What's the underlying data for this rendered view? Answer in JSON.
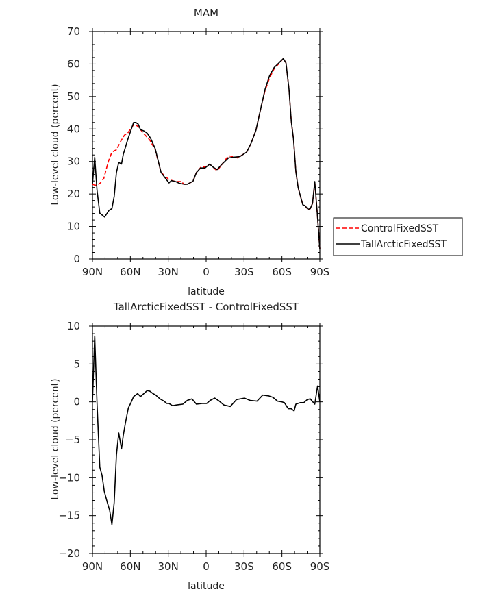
{
  "chart_data": [
    {
      "type": "line",
      "title": "MAM",
      "xlabel": "latitude",
      "ylabel": "Low-level cloud (percent)",
      "xlim": [
        90,
        -90
      ],
      "ylim": [
        0,
        70
      ],
      "xticks": [
        90,
        60,
        30,
        0,
        -30,
        -60,
        -90
      ],
      "xtick_labels": [
        "90N",
        "60N",
        "30N",
        "0",
        "30S",
        "60S",
        "90S"
      ],
      "yticks": [
        0,
        10,
        20,
        30,
        40,
        50,
        60,
        70
      ],
      "ytick_labels": [
        "0",
        "10",
        "20",
        "30",
        "40",
        "50",
        "60",
        "70"
      ],
      "grid": false,
      "legend": "right",
      "series": [
        {
          "name": "ControlFixedSST",
          "color": "#ff0000",
          "dash": "dashed",
          "x": [
            90,
            88.2,
            86.4,
            83.7,
            81,
            77.4,
            74.6,
            71,
            67.4,
            64.7,
            62,
            57.4,
            55.6,
            52.9,
            49.3,
            44.8,
            40.3,
            35.7,
            29.4,
            27.6,
            24,
            19.5,
            17.6,
            14.9,
            10.4,
            7.7,
            4,
            0.4,
            -2.8,
            -8.6,
            -17.7,
            -24.9,
            -32.1,
            -35.7,
            -39.4,
            -43,
            -46.6,
            -50.2,
            -53.8,
            -57.5,
            -61.1,
            -63.2,
            -65.6,
            -67.4,
            -69.2,
            -71,
            -72.8,
            -76.5,
            -78.3,
            -80.6,
            -82.4,
            -84.2,
            -86,
            -87.8,
            -90
          ],
          "y": [
            23,
            22.7,
            22.7,
            23.4,
            24.8,
            30,
            32.9,
            33.6,
            36.4,
            38.1,
            38.8,
            41.3,
            41.3,
            40.3,
            38.5,
            36.7,
            33.6,
            26.6,
            24.4,
            24.2,
            23.8,
            23.8,
            23,
            23,
            23.9,
            26.6,
            28.3,
            28.3,
            29.2,
            27.1,
            31.8,
            31.1,
            32.9,
            35.7,
            39.6,
            45.9,
            51.8,
            55.7,
            58.5,
            60.1,
            61.7,
            60.3,
            52.2,
            42.4,
            36.8,
            26.9,
            22,
            16.7,
            16.4,
            15.1,
            15.5,
            17.1,
            23.6,
            15,
            3
          ]
        },
        {
          "name": "TallArcticFixedSST",
          "color": "#000000",
          "dash": "solid",
          "x": [
            90,
            88.2,
            86.4,
            84.2,
            80.4,
            76.8,
            74.6,
            72.8,
            71,
            69.2,
            67,
            65.6,
            62,
            57.4,
            55.6,
            53.8,
            52,
            49.3,
            46.6,
            43.9,
            40.3,
            35.7,
            29.4,
            27.6,
            24,
            21.3,
            17.6,
            14.9,
            10.4,
            7.7,
            4.4,
            0.8,
            -2.8,
            -5.4,
            -8.6,
            -12.6,
            -17.7,
            -21.3,
            -26.7,
            -32.1,
            -35.7,
            -39.4,
            -43,
            -46.6,
            -50.2,
            -53.8,
            -57.5,
            -61.1,
            -63.2,
            -65.6,
            -67.4,
            -69.2,
            -71,
            -72.8,
            -76.5,
            -78.3,
            -80.6,
            -82.4,
            -84.2,
            -86,
            -87.8,
            -90
          ],
          "y": [
            23,
            31.3,
            21.3,
            14.1,
            12.9,
            15,
            15.5,
            19.2,
            26.6,
            29.7,
            29.2,
            32.2,
            36.8,
            42,
            42,
            41.5,
            39.8,
            39.4,
            38.7,
            37.1,
            33.9,
            26.6,
            23.4,
            24.1,
            23.8,
            23.3,
            23,
            23,
            23.9,
            26.6,
            28,
            28,
            29.2,
            28.3,
            27.5,
            29.2,
            31.1,
            31.3,
            31.5,
            32.9,
            35.7,
            39.6,
            45.9,
            52.2,
            56.4,
            58.9,
            60.3,
            61.7,
            60.3,
            52.2,
            42.4,
            36.8,
            26.9,
            22,
            16.7,
            16.4,
            15.3,
            15.5,
            17.1,
            23.8,
            15,
            3
          ]
        }
      ]
    },
    {
      "type": "line",
      "title": "TallArcticFixedSST - ControlFixedSST",
      "xlabel": "latitude",
      "ylabel": "Low-level cloud (percent)",
      "xlim": [
        90,
        -90
      ],
      "ylim": [
        -20,
        10
      ],
      "xticks": [
        90,
        60,
        30,
        0,
        -30,
        -60,
        -90
      ],
      "xtick_labels": [
        "90N",
        "60N",
        "30N",
        "0",
        "30S",
        "60S",
        "90S"
      ],
      "yticks": [
        -20,
        -15,
        -10,
        -5,
        0,
        5,
        10
      ],
      "ytick_labels": [
        "-20",
        "-15",
        "-10",
        "-5",
        "0",
        "5",
        "10"
      ],
      "grid": false,
      "series": [
        {
          "color": "#000000",
          "dash": "solid",
          "x": [
            90,
            88.2,
            86.4,
            84.2,
            82.4,
            80.6,
            78.2,
            76.4,
            74.6,
            72.8,
            71,
            69.2,
            67,
            65.6,
            63.8,
            61.6,
            59.8,
            57.4,
            54.2,
            52,
            49.3,
            46.6,
            44.4,
            42.1,
            39.9,
            36.6,
            33.4,
            31.2,
            29.4,
            26.7,
            23.1,
            18.5,
            14.9,
            11.3,
            7.7,
            3.2,
            -0.5,
            -3.2,
            -6.8,
            -10.4,
            -14,
            -19.1,
            -24,
            -30.3,
            -34.8,
            -40.3,
            -44.8,
            -49.3,
            -52.9,
            -56.5,
            -60.1,
            -61.9,
            -65,
            -67.4,
            -69.6,
            -71,
            -74.6,
            -77.3,
            -80,
            -82.4,
            -86,
            -88.2,
            -90
          ],
          "y": [
            0,
            8.7,
            0,
            -8.6,
            -9.7,
            -11.8,
            -13.3,
            -14.3,
            -16.2,
            -13.3,
            -7,
            -4.1,
            -6.2,
            -4.4,
            -2.7,
            -0.8,
            -0.2,
            0.7,
            1.1,
            0.7,
            1.1,
            1.5,
            1.4,
            1.1,
            0.9,
            0.4,
            0.1,
            -0.2,
            -0.2,
            -0.5,
            -0.4,
            -0.3,
            0.2,
            0.4,
            -0.3,
            -0.2,
            -0.2,
            0.2,
            0.5,
            0.1,
            -0.4,
            -0.6,
            0.3,
            0.5,
            0.2,
            0.1,
            0.9,
            0.8,
            0.6,
            0.1,
            0,
            -0.1,
            -0.9,
            -0.9,
            -1.2,
            -0.3,
            -0.1,
            -0.1,
            0.3,
            0.4,
            -0.3,
            2.1,
            0
          ]
        }
      ]
    }
  ]
}
